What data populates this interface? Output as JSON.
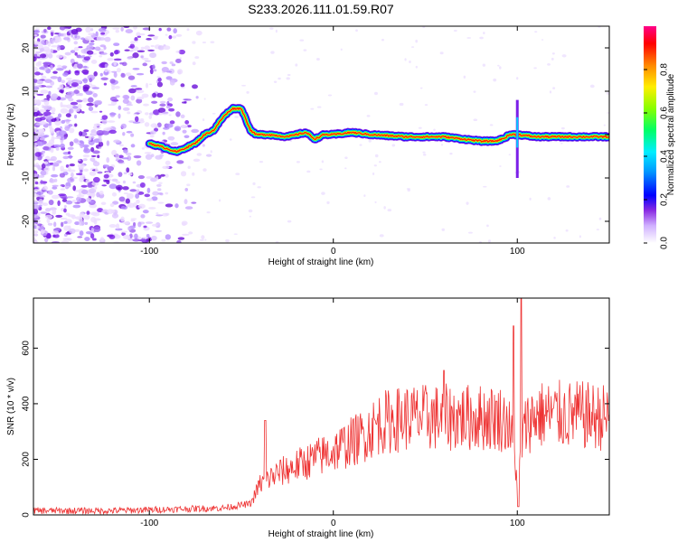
{
  "title": "S233.2026.111.01.59.R07",
  "chart_data": [
    {
      "type": "heatmap",
      "name": "spectrogram",
      "xlabel": "Height of straight line (km)",
      "ylabel": "Frequency (Hz)",
      "xlim": [
        -163,
        150
      ],
      "ylim": [
        -25,
        25
      ],
      "xticks": [
        -100,
        0,
        100
      ],
      "xtick_labels": [
        "-100",
        "0",
        "100"
      ],
      "yticks": [
        -20,
        -10,
        0,
        10,
        20
      ],
      "ytick_labels": [
        "-20",
        "-10",
        "0",
        "10",
        "20"
      ],
      "ridge": {
        "x": [
          -100,
          -92,
          -85,
          -80,
          -75,
          -70,
          -65,
          -60,
          -55,
          -50,
          -48,
          -45,
          -42,
          -35,
          -25,
          -15,
          -10,
          -5,
          0,
          10,
          20,
          40,
          60,
          70,
          80,
          88,
          92,
          96,
          100,
          110,
          120,
          130,
          140,
          150
        ],
        "y": [
          -2,
          -3,
          -4,
          -3,
          -2,
          0,
          1,
          4,
          6,
          6,
          4,
          1,
          0,
          0,
          -0.5,
          0.5,
          -1,
          0,
          0,
          0.5,
          0,
          -0.5,
          -0.5,
          -1,
          -1.5,
          -1.5,
          -1,
          0,
          0,
          -0.5,
          -0.5,
          -0.5,
          -0.5,
          -0.5
        ]
      },
      "colorbar": {
        "label": "Normalized spectral amplitude",
        "range": [
          0,
          1
        ],
        "ticks": [
          0.0,
          0.2,
          0.4,
          0.6,
          0.8
        ],
        "tick_labels": [
          "0.0",
          "0.2",
          "0.4",
          "0.6",
          "0.8"
        ],
        "colors": [
          "#ffffff",
          "#c9a6ff",
          "#7b1fe8",
          "#0000ff",
          "#00ccff",
          "#00ff66",
          "#88ff00",
          "#ffee00",
          "#ff8800",
          "#ff0000",
          "#ff0088"
        ]
      }
    },
    {
      "type": "line",
      "name": "snr",
      "xlabel": "Height of straight line (km)",
      "ylabel": "SNR (10 * v/v)",
      "xlim": [
        -163,
        150
      ],
      "ylim": [
        0,
        780
      ],
      "xticks": [
        -100,
        0,
        100
      ],
      "xtick_labels": [
        "-100",
        "0",
        "100"
      ],
      "yticks": [
        0,
        200,
        400,
        600
      ],
      "ytick_labels": [
        "0",
        "200",
        "400",
        "600"
      ],
      "color": "#ee3333",
      "trend": {
        "x": [
          -163,
          -120,
          -90,
          -60,
          -45,
          -40,
          -30,
          -15,
          0,
          15,
          25,
          40,
          60,
          80,
          90,
          95,
          98,
          100,
          102,
          105,
          110,
          130,
          150
        ],
        "y": [
          15,
          15,
          20,
          25,
          40,
          110,
          150,
          190,
          230,
          280,
          330,
          350,
          350,
          350,
          350,
          330,
          250,
          120,
          250,
          330,
          360,
          360,
          350
        ]
      },
      "peaks": [
        {
          "x": 98,
          "y": 680
        },
        {
          "x": 102,
          "y": 780
        },
        {
          "x": 100.5,
          "y": 30
        },
        {
          "x": 60,
          "y": 520
        },
        {
          "x": -37,
          "y": 340
        }
      ]
    }
  ]
}
